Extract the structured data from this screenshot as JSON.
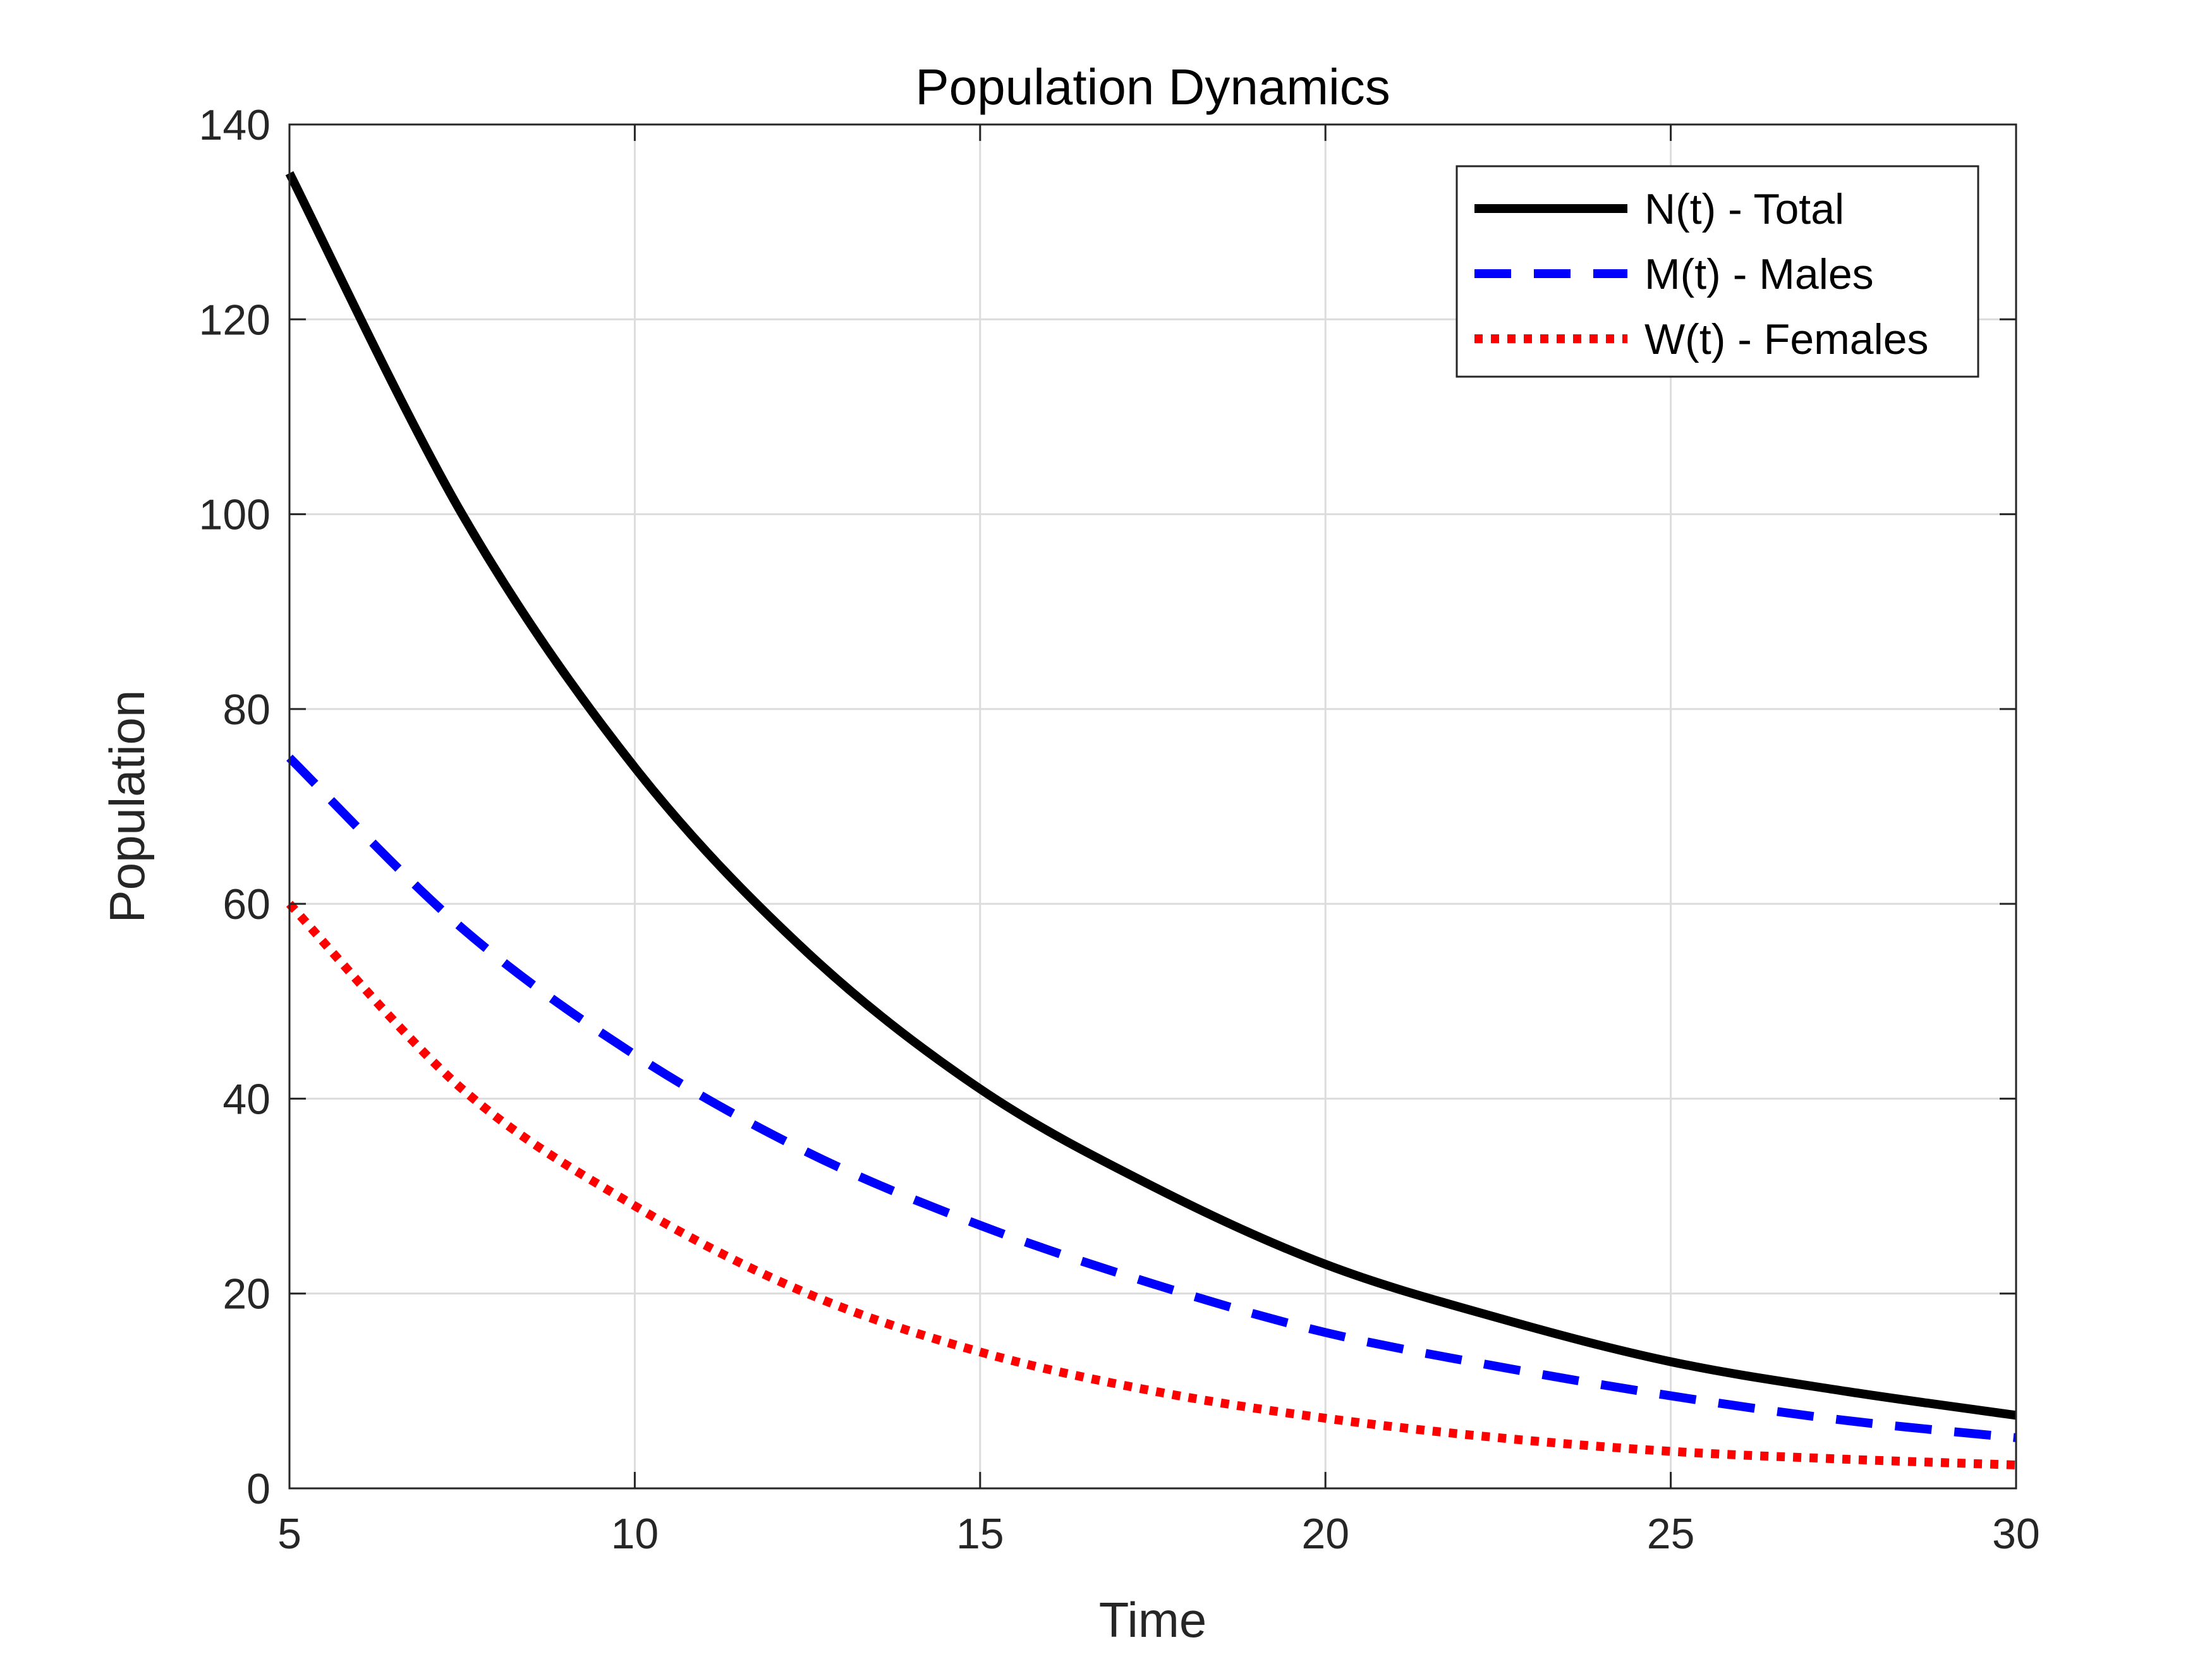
{
  "chart_data": {
    "type": "line",
    "title": "Population Dynamics",
    "xlabel": "Time",
    "ylabel": "Population",
    "xlim": [
      5,
      30
    ],
    "ylim": [
      0,
      140
    ],
    "xticks": [
      5,
      10,
      15,
      20,
      25,
      30
    ],
    "yticks": [
      0,
      20,
      40,
      60,
      80,
      100,
      120,
      140
    ],
    "grid": true,
    "legend_position": "top-right",
    "x": [
      5,
      7.5,
      10,
      12.5,
      15,
      17.5,
      20,
      22.5,
      25,
      27.5,
      30
    ],
    "series": [
      {
        "name": "N(t) - Total",
        "color": "#000000",
        "style": "solid",
        "values": [
          135,
          100,
          74,
          55,
          41,
          31,
          23,
          17.5,
          13,
          10,
          7.5
        ]
      },
      {
        "name": "M(t) - Males",
        "color": "#0000ff",
        "style": "dashed",
        "values": [
          75,
          57.5,
          44.5,
          34.5,
          27,
          21,
          16,
          12.5,
          9.5,
          7,
          5.2
        ]
      },
      {
        "name": "W(t) - Females",
        "color": "#ff0000",
        "style": "dotted",
        "values": [
          60,
          41,
          29,
          20,
          14,
          10,
          7.2,
          5.2,
          3.8,
          3,
          2.4
        ]
      }
    ]
  }
}
